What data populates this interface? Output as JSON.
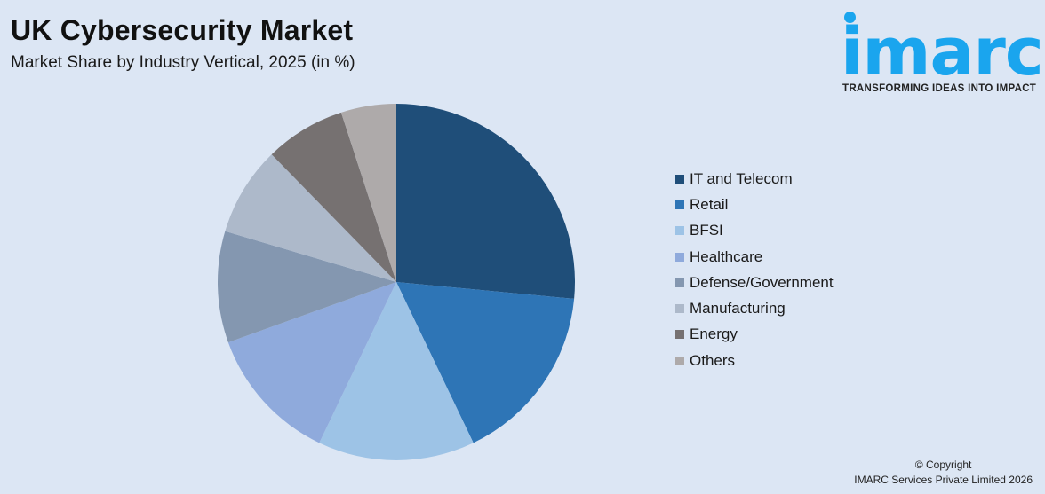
{
  "header": {
    "title": "UK Cybersecurity Market",
    "subtitle": "Market Share by Industry Vertical, 2025 (in %)"
  },
  "logo": {
    "word": "imarc",
    "tagline": "TRANSFORMING IDEAS INTO IMPACT",
    "color": "#1aa5ee"
  },
  "footer": {
    "copyright_line1": "© Copyright",
    "copyright_line2": "IMARC Services Private Limited 2026"
  },
  "chart_data": {
    "type": "pie",
    "title": "UK Cybersecurity Market",
    "subtitle": "Market Share by Industry Vertical, 2025 (in %)",
    "categories": [
      "IT and Telecom",
      "Retail",
      "BFSI",
      "Healthcare",
      "Defense/Government",
      "Manufacturing",
      "Energy",
      "Others"
    ],
    "values": [
      26.5,
      16.4,
      14.2,
      12.4,
      10.1,
      8.1,
      7.3,
      5.0
    ],
    "colors": [
      "#1f4e79",
      "#2e75b6",
      "#9dc3e6",
      "#8faadc",
      "#8497b0",
      "#adb9ca",
      "#767171",
      "#aeaaaa"
    ],
    "start_angle_deg": 0,
    "direction": "clockwise",
    "legend_position": "right",
    "data_labels": false
  }
}
